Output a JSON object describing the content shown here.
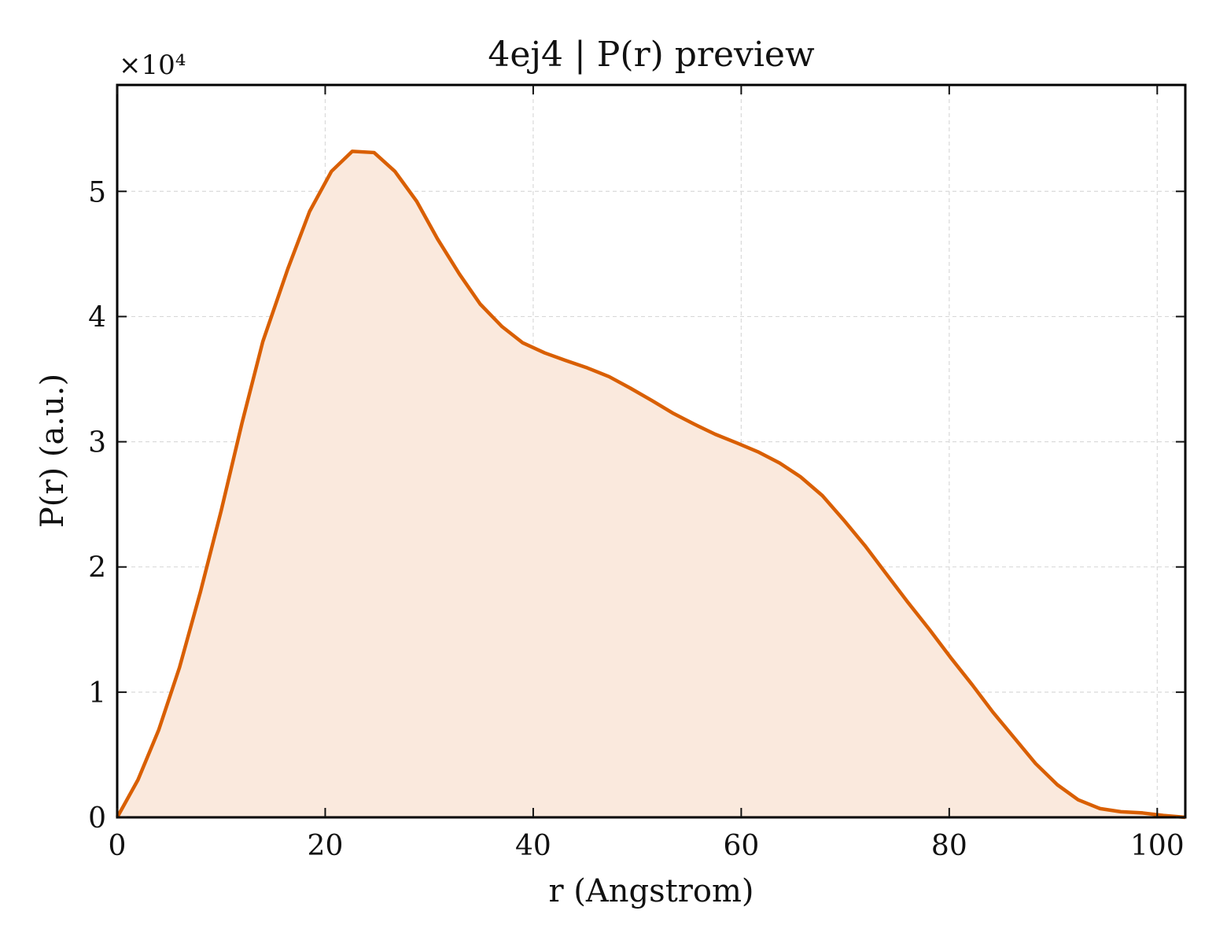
{
  "chart_data": {
    "type": "area",
    "title": "4ej4 | P(r) preview",
    "xlabel": "r (Angstrom)",
    "ylabel": "P(r) (a.u.)",
    "y_multiplier_label": "×10⁴",
    "y_scale_factor": 10000,
    "xlim": [
      0,
      102.7
    ],
    "ylim": [
      0,
      58500
    ],
    "x_ticks": [
      0,
      20,
      40,
      60,
      80,
      100
    ],
    "y_ticks": [
      0,
      10000,
      20000,
      30000,
      40000,
      50000
    ],
    "y_tick_labels": [
      "0",
      "1",
      "2",
      "3",
      "4",
      "5"
    ],
    "grid": true,
    "line_color": "#d95f02",
    "fill_color": "#fae9dd",
    "series": [
      {
        "x": [
          0,
          2,
          4,
          6,
          8,
          10,
          12,
          14,
          16.4,
          18.5,
          20.6,
          22.6,
          24.7,
          26.7,
          28.8,
          30.8,
          32.9,
          34.9,
          37.0,
          39.0,
          41.1,
          43.1,
          45.2,
          47.3,
          49.3,
          51.4,
          53.4,
          55.5,
          57.5,
          59.6,
          61.6,
          63.7,
          65.7,
          67.8,
          69.8,
          71.9,
          73.9,
          76.0,
          78.1,
          80.1,
          82.2,
          84.2,
          86.3,
          88.3,
          90.4,
          92.4,
          94.5,
          96.5,
          98.6,
          100.6,
          102.7
        ],
        "y": [
          0,
          3000,
          7000,
          12000,
          18000,
          24500,
          31500,
          38000,
          43800,
          48400,
          51600,
          53200,
          53100,
          51600,
          49200,
          46200,
          43400,
          41000,
          39200,
          37900,
          37100,
          36500,
          35900,
          35200,
          34300,
          33300,
          32300,
          31400,
          30600,
          29900,
          29200,
          28300,
          27200,
          25700,
          23800,
          21700,
          19500,
          17200,
          15000,
          12800,
          10600,
          8400,
          6300,
          4300,
          2600,
          1400,
          700,
          450,
          350,
          150,
          0
        ]
      }
    ]
  }
}
